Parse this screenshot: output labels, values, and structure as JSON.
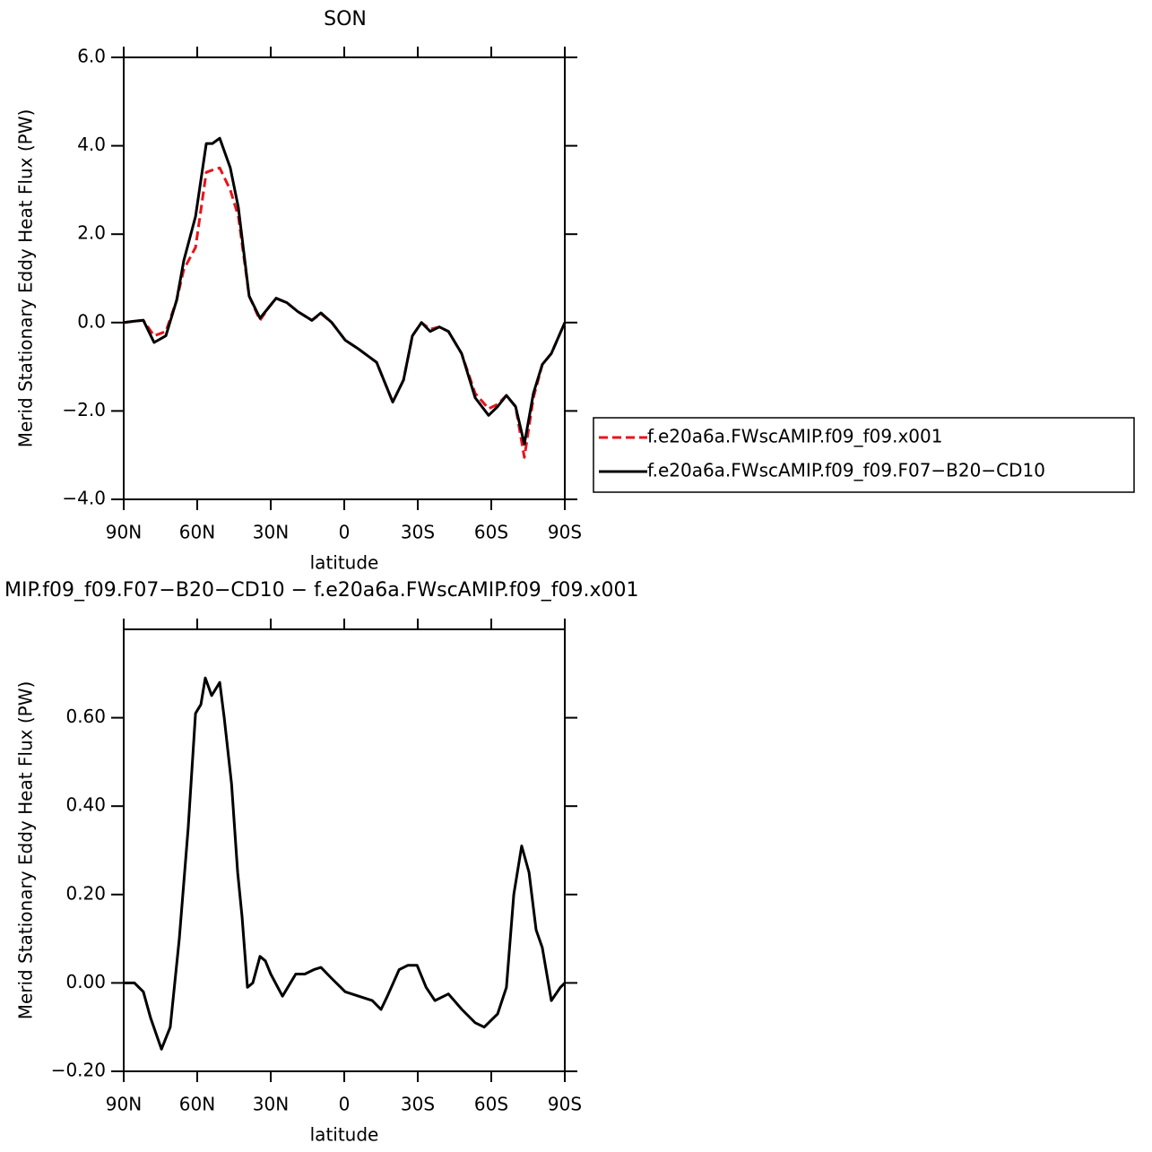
{
  "chart_data": [
    {
      "type": "line",
      "title": "SON",
      "xlabel": "latitude",
      "ylabel": "Merid Stationary Eddy Heat Flux (PW)",
      "xlim": [
        90,
        -90
      ],
      "ylim": [
        -4.0,
        6.0
      ],
      "xticks": [
        {
          "value": 90,
          "label": "90N"
        },
        {
          "value": 60,
          "label": "60N"
        },
        {
          "value": 30,
          "label": "30N"
        },
        0,
        {
          "value": -30,
          "label": "30S"
        },
        {
          "value": -60,
          "label": "60S"
        },
        {
          "value": -90,
          "label": "90S"
        }
      ],
      "yticks": [
        {
          "value": -4,
          "label": "−4.0"
        },
        {
          "value": -2,
          "label": "−2.0"
        },
        {
          "value": 0,
          "label": "0.0"
        },
        {
          "value": 2,
          "label": "2.0"
        },
        {
          "value": 4,
          "label": "4.0"
        },
        {
          "value": 6,
          "label": "6.0"
        }
      ],
      "legend": "right",
      "x": [
        90,
        85.6,
        82,
        77.6,
        72.8,
        68.4,
        65.5,
        60.7,
        56.3,
        53.8,
        50.8,
        46.5,
        43.2,
        38.8,
        34.4,
        30.7,
        27.8,
        23.4,
        19,
        13.2,
        9.5,
        5.1,
        -0.4,
        -5.9,
        -13.2,
        -19.8,
        -24.2,
        -27.8,
        -31.5,
        -35.1,
        -38.8,
        -42.5,
        -47.9,
        -53.4,
        -58.9,
        -62.6,
        -66.2,
        -69.9,
        -73.5,
        -77.2,
        -80.8,
        -84.5,
        -90
      ],
      "series": [
        {
          "name": "f.e20a6a.FWscAMIP.f09_f09.x001",
          "color": "#e8141c",
          "dash": true,
          "values": [
            0.0,
            0.03,
            0.05,
            -0.3,
            -0.2,
            0.5,
            1.2,
            1.7,
            3.4,
            3.45,
            3.5,
            3.0,
            2.4,
            0.6,
            0.05,
            0.35,
            0.55,
            0.45,
            0.25,
            0.05,
            0.2,
            0.0,
            -0.4,
            -0.6,
            -0.9,
            -1.8,
            -1.3,
            -0.3,
            0.0,
            -0.15,
            -0.1,
            -0.2,
            -0.7,
            -1.6,
            -1.95,
            -1.85,
            -1.65,
            -1.9,
            -3.05,
            -1.7,
            -0.95,
            -0.7,
            0.0
          ]
        },
        {
          "name": "f.e20a6a.FWscAMIP.f09_f09.F07−B20−CD10",
          "color": "#000000",
          "dash": false,
          "values": [
            0.0,
            0.03,
            0.05,
            -0.45,
            -0.3,
            0.5,
            1.4,
            2.4,
            4.05,
            4.05,
            4.17,
            3.5,
            2.6,
            0.6,
            0.1,
            0.35,
            0.55,
            0.45,
            0.25,
            0.05,
            0.22,
            0.0,
            -0.4,
            -0.6,
            -0.9,
            -1.8,
            -1.3,
            -0.3,
            0.0,
            -0.2,
            -0.1,
            -0.2,
            -0.7,
            -1.7,
            -2.1,
            -1.9,
            -1.65,
            -1.9,
            -2.75,
            -1.6,
            -0.95,
            -0.7,
            0.0
          ]
        }
      ]
    },
    {
      "type": "line",
      "title": "MIP.f09_f09.F07−B20−CD10 − f.e20a6a.FWscAMIP.f09_f09.x001",
      "xlabel": "latitude",
      "ylabel": "Merid Stationary Eddy Heat Flux (PW)",
      "xlim": [
        90,
        -90
      ],
      "ylim": [
        -0.2,
        0.8
      ],
      "xticks": [
        {
          "value": 90,
          "label": "90N"
        },
        {
          "value": 60,
          "label": "60N"
        },
        {
          "value": 30,
          "label": "30N"
        },
        0,
        {
          "value": -30,
          "label": "30S"
        },
        {
          "value": -60,
          "label": "60S"
        },
        {
          "value": -90,
          "label": "90S"
        }
      ],
      "yticks": [
        {
          "value": -0.2,
          "label": "−0.20"
        },
        {
          "value": 0,
          "label": "0.00"
        },
        {
          "value": 0.2,
          "label": "0.20"
        },
        {
          "value": 0.4,
          "label": "0.40"
        },
        {
          "value": 0.6,
          "label": "0.60"
        }
      ],
      "x": [
        90,
        85.6,
        82,
        79,
        74.6,
        71,
        67.3,
        63.7,
        60.7,
        58.5,
        56.7,
        54.1,
        50.8,
        49,
        46,
        43.5,
        41.7,
        39.5,
        37.3,
        34.4,
        32.2,
        30,
        25.2,
        19.8,
        16.1,
        12.4,
        9.5,
        5.1,
        -0.4,
        -5.9,
        -11.4,
        -15,
        -17.6,
        -22.4,
        -26,
        -29.7,
        -33.4,
        -37,
        -42.5,
        -48,
        -53.4,
        -57.1,
        -62.6,
        -66.2,
        -69.2,
        -72.4,
        -75.4,
        -78.3,
        -80.8,
        -84.5,
        -88.2,
        -90
      ],
      "series": [
        {
          "color": "#000000",
          "dash": false,
          "values": [
            0.0,
            0.0,
            -0.02,
            -0.08,
            -0.15,
            -0.1,
            0.1,
            0.35,
            0.61,
            0.63,
            0.69,
            0.65,
            0.68,
            0.6,
            0.45,
            0.25,
            0.15,
            -0.01,
            0.0,
            0.06,
            0.05,
            0.02,
            -0.03,
            0.02,
            0.02,
            0.03,
            0.035,
            0.01,
            -0.02,
            -0.03,
            -0.04,
            -0.06,
            -0.03,
            0.03,
            0.04,
            0.04,
            -0.01,
            -0.04,
            -0.025,
            -0.06,
            -0.09,
            -0.1,
            -0.07,
            -0.01,
            0.2,
            0.31,
            0.25,
            0.12,
            0.08,
            -0.04,
            -0.01,
            0.0
          ]
        }
      ]
    }
  ]
}
